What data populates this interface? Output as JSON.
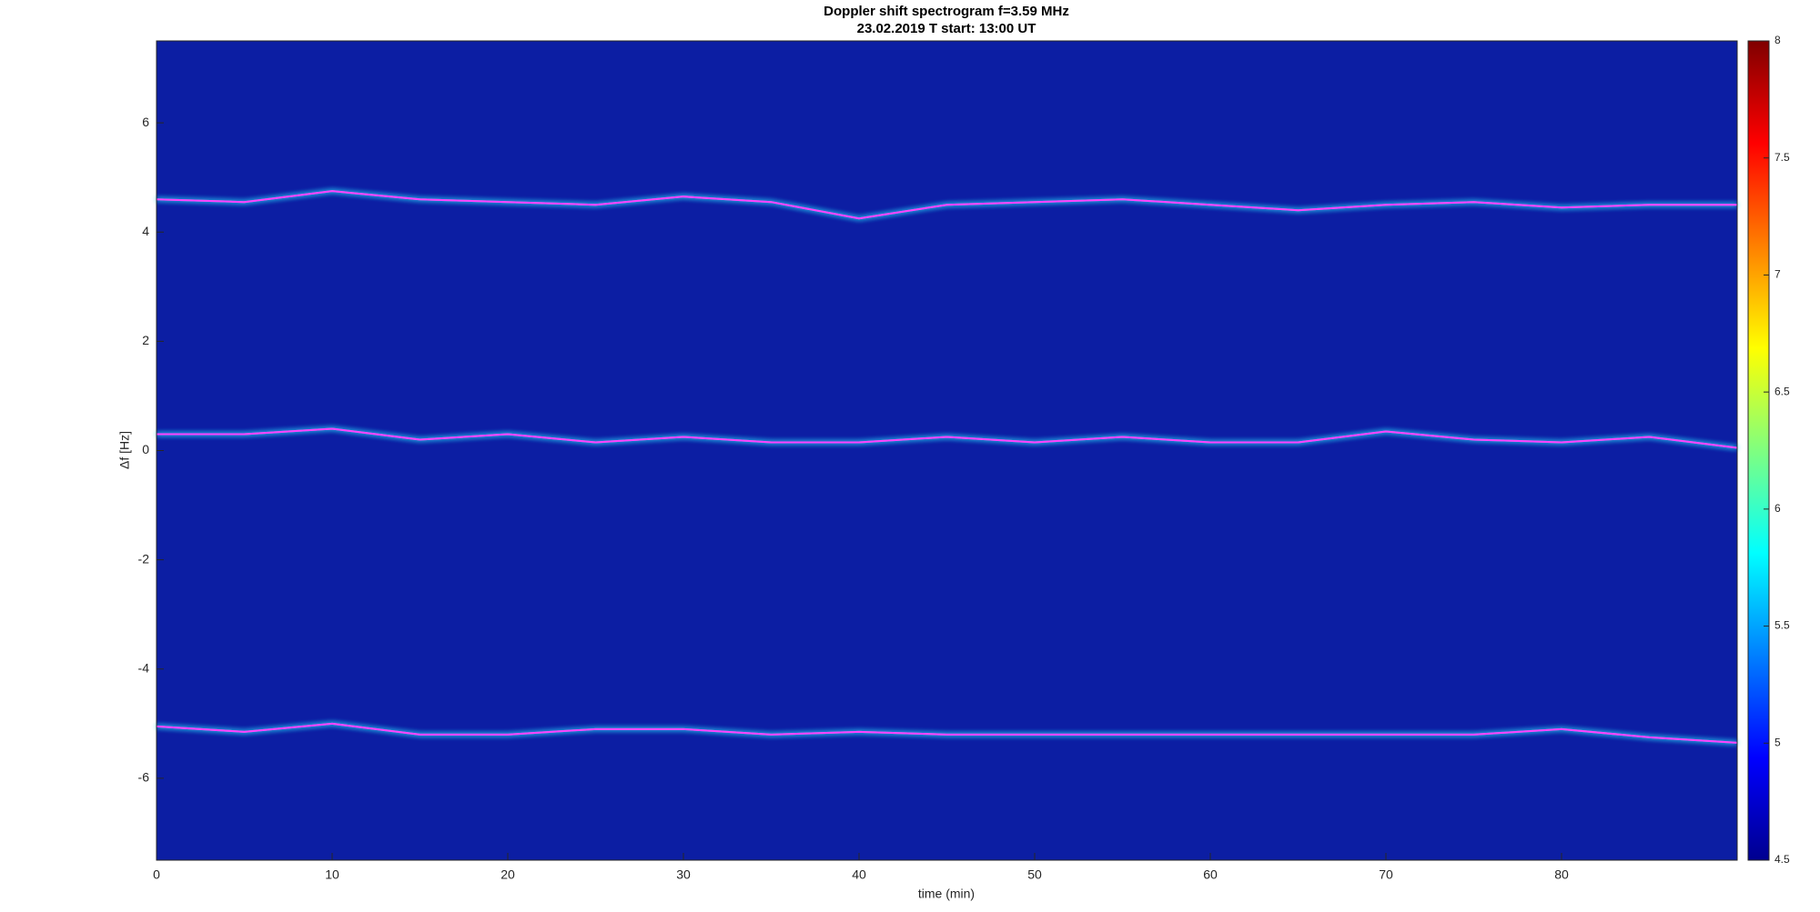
{
  "chart_data": {
    "type": "spectrogram",
    "title": "Doppler shift spectrogram f=3.59 MHz",
    "subtitle": "23.02.2019   T start: 13:00 UT",
    "x_label": "time (min)",
    "y_label": "Δf [Hz]",
    "background_color": "#0c1ea3",
    "colormap": "jet",
    "x": [
      0,
      5,
      10,
      15,
      20,
      25,
      30,
      35,
      40,
      45,
      50,
      55,
      60,
      65,
      70,
      75,
      80,
      85,
      90
    ],
    "series": [
      {
        "color": "#ff40ff",
        "values": [
          4.6,
          4.55,
          4.75,
          4.6,
          4.55,
          4.5,
          4.65,
          4.55,
          4.25,
          4.5,
          4.55,
          4.6,
          4.5,
          4.4,
          4.5,
          4.55,
          4.45,
          4.5,
          4.5
        ]
      },
      {
        "color": "#ff40ff",
        "values": [
          0.3,
          0.3,
          0.4,
          0.2,
          0.3,
          0.15,
          0.25,
          0.15,
          0.15,
          0.25,
          0.15,
          0.25,
          0.15,
          0.15,
          0.35,
          0.2,
          0.15,
          0.25,
          0.05
        ]
      },
      {
        "color": "#ff40ff",
        "values": [
          -5.05,
          -5.15,
          -5.0,
          -5.2,
          -5.2,
          -5.1,
          -5.1,
          -5.2,
          -5.15,
          -5.2,
          -5.2,
          -5.2,
          -5.2,
          -5.2,
          -5.2,
          -5.2,
          -5.1,
          -5.25,
          -5.35
        ]
      }
    ],
    "xlim": [
      0,
      90
    ],
    "xticks": [
      0,
      10,
      20,
      30,
      40,
      50,
      60,
      70,
      80
    ],
    "ylim": [
      -7.5,
      7.5
    ],
    "yticks": [
      -6,
      -4,
      -2,
      0,
      2,
      4,
      6
    ],
    "clim": [
      4.5,
      8
    ],
    "cticks": [
      4.5,
      5,
      5.5,
      6,
      6.5,
      7,
      7.5,
      8
    ]
  }
}
